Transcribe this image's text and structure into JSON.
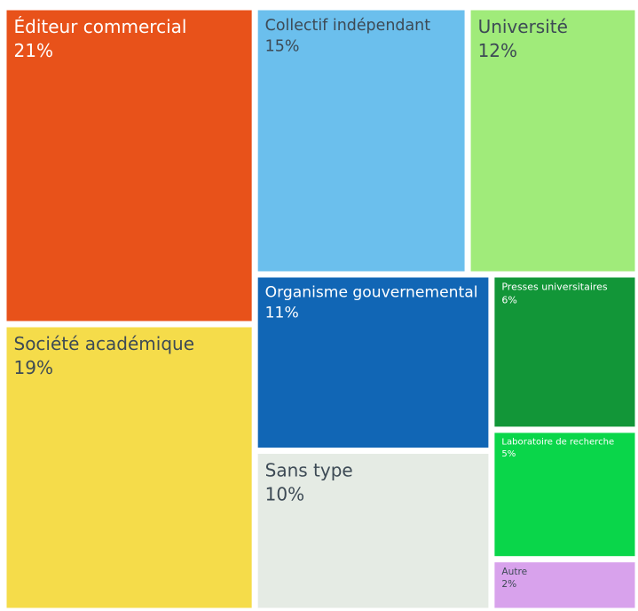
{
  "chart_data": {
    "type": "treemap",
    "labels": [
      "Éditeur commercial",
      "Société académique",
      "Collectif indépendant",
      "Université",
      "Organisme gouvernemental",
      "Sans type",
      "Presses universitaires",
      "Laboratoire de recherche",
      "Autre"
    ],
    "values": [
      21,
      19,
      15,
      12,
      11,
      10,
      6,
      5,
      2
    ],
    "value_labels": [
      "21%",
      "19%",
      "15%",
      "12%",
      "11%",
      "10%",
      "6%",
      "5%",
      "2%"
    ],
    "colors": [
      "#e8521a",
      "#f5dc4a",
      "#6bbfed",
      "#a0eb7a",
      "#1166b5",
      "#e5ebe4",
      "#129638",
      "#0ad64a",
      "#d8a2ec"
    ]
  }
}
